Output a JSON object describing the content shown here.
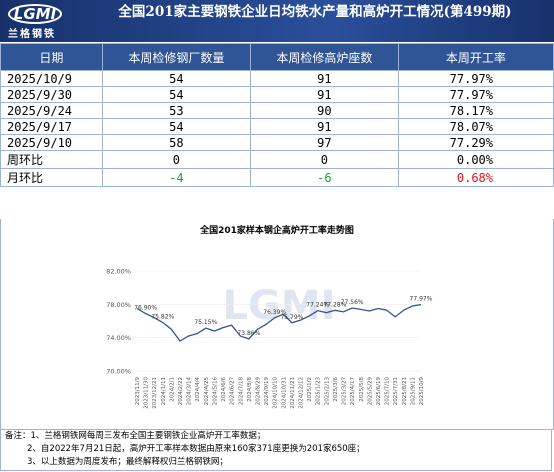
{
  "header": {
    "logo": "LGMI",
    "logo_name": "兰格钢铁",
    "title": "全国201家主要钢铁企业日均铁水产量和高炉开工情况(第499期)"
  },
  "table": {
    "columns": [
      "日期",
      "本周检修钢厂数量",
      "本周检修高炉座数",
      "本周开工率"
    ],
    "rows": [
      [
        "2025/10/9",
        "54",
        "91",
        "77.97%"
      ],
      [
        "2025/9/30",
        "54",
        "91",
        "77.97%"
      ],
      [
        "2025/9/24",
        "53",
        "90",
        "78.17%"
      ],
      [
        "2025/9/17",
        "54",
        "91",
        "78.07%"
      ],
      [
        "2025/9/10",
        "58",
        "97",
        "77.29%"
      ],
      [
        "周环比",
        "0",
        "0",
        "0.00%"
      ],
      [
        "月环比",
        "-4",
        "-6",
        "0.68%"
      ]
    ]
  },
  "chart_data": {
    "type": "line",
    "title": "全国201家样本钢企高炉开工率走势图",
    "categories": [
      "2023/11/9",
      "2023/11/30",
      "2023/12/21",
      "2024/1/11",
      "2024/2/1",
      "2024/2/22",
      "2024/3/14",
      "2024/4/4",
      "2024/4/25",
      "2024/5/16",
      "2024/6/6",
      "2024/6/27",
      "2024/7/18",
      "2024/8/8",
      "2024/8/29",
      "2024/9/19",
      "2024/10/10",
      "2024/10/31",
      "2024/11/21",
      "2024/12/12",
      "2025/1/2",
      "2025/1/23",
      "2025/2/13",
      "2025/3/6",
      "2025/3/27",
      "2025/4/17",
      "2025/5/8",
      "2025/5/29",
      "2025/6/19",
      "2025/7/10",
      "2025/7/31",
      "2025/8/21",
      "2025/9/11",
      "2025/10/9"
    ],
    "series": [
      {
        "name": "高炉开工率",
        "color": "#2f5597",
        "values": [
          77.5,
          76.9,
          76.4,
          75.82,
          75.0,
          73.6,
          74.2,
          74.5,
          75.15,
          74.8,
          75.2,
          75.5,
          74.2,
          73.86,
          75.0,
          75.6,
          76.39,
          76.8,
          75.79,
          76.1,
          76.6,
          77.24,
          77.0,
          77.28,
          77.1,
          77.56,
          77.4,
          77.2,
          77.5,
          77.3,
          76.5,
          77.3,
          77.8,
          77.97
        ],
        "value_labels": [
          null,
          "76.90%",
          null,
          "75.82%",
          null,
          null,
          null,
          null,
          "75.15%",
          null,
          null,
          null,
          null,
          "73.86%",
          null,
          null,
          "76.39%",
          null,
          "75.79%",
          null,
          null,
          "77.24%",
          null,
          "77.28%",
          null,
          "77.56%",
          null,
          null,
          null,
          null,
          null,
          null,
          null,
          "77.97%"
        ]
      }
    ],
    "ylim": [
      70,
      82
    ],
    "yticks": [
      {
        "value": 70,
        "label": "70.00%"
      },
      {
        "value": 74,
        "label": "74.00%"
      },
      {
        "value": 78,
        "label": "78.00%"
      },
      {
        "value": 82,
        "label": "82.00%"
      }
    ]
  },
  "notes": [
    "备注：1、兰格钢铁网每周三发布全国主要钢铁企业高炉开工率数据；",
    "2、自2022年7月21日起，高炉开工率样本数据由原来160家371座更换为201家650座；",
    "3、以上数据为周度发布；最终解释权归兰格钢铁网；"
  ]
}
